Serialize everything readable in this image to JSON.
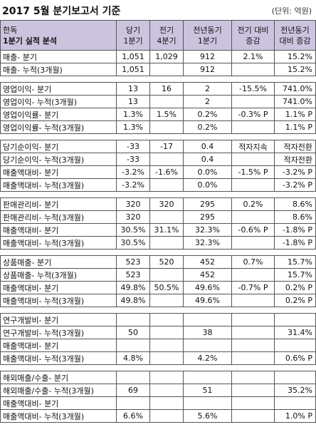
{
  "title": "2017 5월 분기보고서 기준",
  "unit": "(단위: 억원)",
  "header": {
    "col0": [
      "한독",
      "1분기 실적 분석"
    ],
    "col1": [
      "당기",
      "1분기"
    ],
    "col2": [
      "전기",
      "4분기"
    ],
    "col3": [
      "전년동기",
      "1분기"
    ],
    "col4": [
      "전기 대비",
      "증감"
    ],
    "col5": [
      "전년동기",
      "대비 증감"
    ]
  },
  "groups": [
    [
      [
        "매출- 분기",
        "1,051",
        "1,029",
        "912",
        "2.1%",
        "15.2%"
      ],
      [
        "매출- 누적(3개월)",
        "1,051",
        "",
        "912",
        "",
        "15.2%"
      ]
    ],
    [
      [
        "영업이익- 분기",
        "13",
        "16",
        "2",
        "-15.5%",
        "741.0%"
      ],
      [
        "영업이익- 누적(3개월)",
        "13",
        "",
        "2",
        "",
        "741.0%"
      ],
      [
        "영업이익률- 분기",
        "1.3%",
        "1.5%",
        "0.2%",
        "-0.3% P",
        "1.1% P"
      ],
      [
        "영업이익률- 누적(3개월)",
        "1.3%",
        "",
        "0.2%",
        "",
        "1.1% P"
      ]
    ],
    [
      [
        "당기순이익- 분기",
        "-33",
        "-17",
        "0.4",
        "적자지속",
        "적자전환"
      ],
      [
        "당기순이익- 누적(3개월)",
        "-33",
        "",
        "0.4",
        "",
        "적자전환"
      ],
      [
        "매출액대비- 분기",
        "-3.2%",
        "-1.6%",
        "0.0%",
        "-1.5% P",
        "-3.2% P"
      ],
      [
        "매출액대비- 누적(3개월)",
        "-3.2%",
        "",
        "0.0%",
        "",
        "-3.2% P"
      ]
    ],
    [
      [
        "판매관리비- 분기",
        "320",
        "320",
        "295",
        "0.2%",
        "8.6%"
      ],
      [
        "판매관리비- 누적(3개월)",
        "320",
        "",
        "295",
        "",
        "8.6%"
      ],
      [
        "매출액대비- 분기",
        "30.5%",
        "31.1%",
        "32.3%",
        "-0.6% P",
        "-1.8% P"
      ],
      [
        "매출액대비- 누적(3개월)",
        "30.5%",
        "",
        "32.3%",
        "",
        "-1.8% P"
      ]
    ],
    [
      [
        "상품매출- 분기",
        "523",
        "520",
        "452",
        "0.7%",
        "15.7%"
      ],
      [
        "상품매출- 누적(3개월)",
        "523",
        "",
        "452",
        "",
        "15.7%"
      ],
      [
        "매출액대비- 분기",
        "49.8%",
        "50.5%",
        "49.6%",
        "-0.7% P",
        "0.2% P"
      ],
      [
        "매출액대비- 누적(3개월)",
        "49.8%",
        "",
        "49.6%",
        "",
        "0.2% P"
      ]
    ],
    [
      [
        "연구개발비- 분기",
        "",
        "",
        "",
        "",
        ""
      ],
      [
        "연구개발비- 누적(3개월)",
        "50",
        "",
        "38",
        "",
        "31.4%"
      ],
      [
        "매출액대비- 분기",
        "",
        "",
        "",
        "",
        ""
      ],
      [
        "매출액대비- 누적(3개월)",
        "4.8%",
        "",
        "4.2%",
        "",
        "0.6% P"
      ]
    ],
    [
      [
        "해외매출/수출- 분기",
        "",
        "",
        "",
        "",
        ""
      ],
      [
        "해외매출/수출- 누적(3개월)",
        "69",
        "",
        "51",
        "",
        "35.2%"
      ],
      [
        "매출액대비- 분기",
        "",
        "",
        "",
        "",
        ""
      ],
      [
        "매출액대비- 누적(3개월)",
        "6.6%",
        "",
        "5.6%",
        "",
        "1.0% P"
      ]
    ]
  ]
}
